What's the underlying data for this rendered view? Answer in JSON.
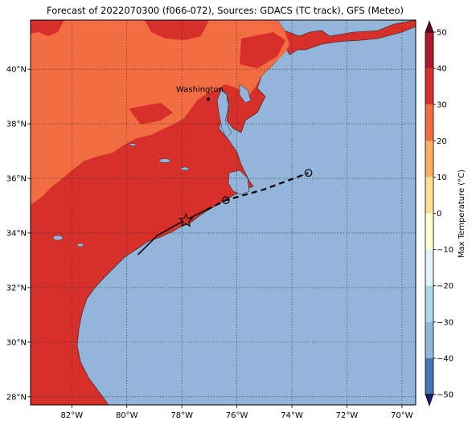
{
  "title": "Forecast of 2022070300 (f066-072), Sources: GDACS (TC track), GFS (Meteo)",
  "map": {
    "lon_range": [
      -83.5,
      -69.5
    ],
    "lat_range": [
      27.7,
      41.8
    ],
    "lon_ticks": [
      "82°W",
      "80°W",
      "78°W",
      "76°W",
      "74°W",
      "72°W",
      "70°W"
    ],
    "lon_tick_values": [
      -82,
      -80,
      -78,
      -76,
      -74,
      -72,
      -70
    ],
    "lat_ticks": [
      "28°N",
      "30°N",
      "32°N",
      "34°N",
      "36°N",
      "38°N",
      "40°N"
    ],
    "lat_tick_values": [
      28,
      30,
      32,
      34,
      36,
      38,
      40
    ],
    "gridlines": true,
    "ocean_color": "#92b5d9",
    "land_colors": {
      "20_30": "#f26d42",
      "30_40": "#d7302a"
    },
    "city": {
      "name": "Washington",
      "lon": -77.04,
      "lat": 38.9
    },
    "track_observed": [
      [
        -79.6,
        33.2
      ],
      [
        -78.9,
        33.9
      ],
      [
        -78.2,
        34.3
      ],
      [
        -77.6,
        34.6
      ],
      [
        -77.1,
        34.85
      ]
    ],
    "track_forecast": [
      [
        -77.1,
        34.85
      ],
      [
        -76.4,
        35.2
      ],
      [
        -75.0,
        35.6
      ],
      [
        -73.4,
        36.2
      ]
    ],
    "storm_position": {
      "lon": -77.85,
      "lat": 34.45
    },
    "forecast_points": [
      {
        "lon": -76.4,
        "lat": 35.2
      },
      {
        "lon": -73.4,
        "lat": 36.2
      }
    ]
  },
  "colorbar": {
    "label": "Max Temperature (°C)",
    "ticks": [
      "50",
      "40",
      "30",
      "20",
      "10",
      "0",
      "−10",
      "−20",
      "−30",
      "−40",
      "−50"
    ],
    "colors": [
      "#67001f",
      "#b2182b",
      "#d7302a",
      "#f26d42",
      "#fdae61",
      "#fee090",
      "#ffffd4",
      "#e0f3f8",
      "#abd9e9",
      "#92b5d9",
      "#4575b4",
      "#313695",
      "#1a1f6e"
    ]
  }
}
